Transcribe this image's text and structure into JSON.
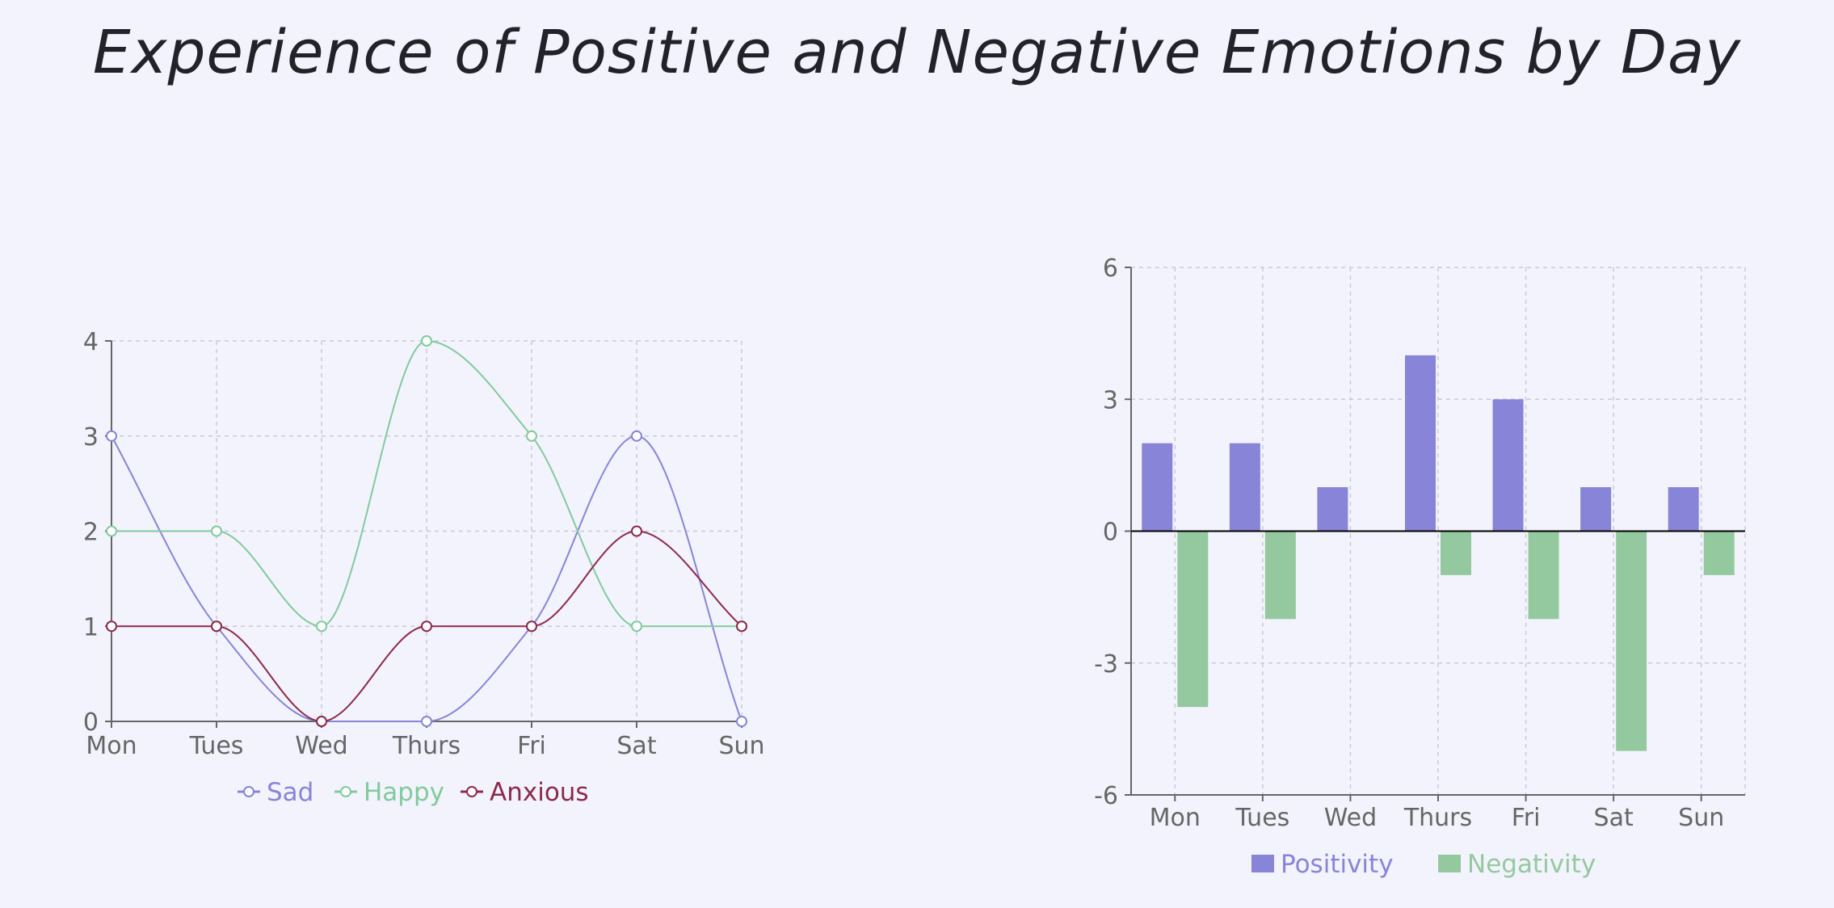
{
  "title": "Experience of Positive and Negative Emotions by Day",
  "chart_data": [
    {
      "type": "line",
      "categories": [
        "Mon",
        "Tues",
        "Wed",
        "Thurs",
        "Fri",
        "Sat",
        "Sun"
      ],
      "ylim": [
        0,
        4
      ],
      "yticks": [
        0,
        1,
        2,
        3,
        4
      ],
      "grid": true,
      "legend_position": "bottom",
      "series": [
        {
          "name": "Sad",
          "color": "#8884d8",
          "values": [
            3,
            1,
            0,
            0,
            1,
            3,
            0
          ]
        },
        {
          "name": "Happy",
          "color": "#82ca9d",
          "values": [
            2,
            2,
            1,
            4,
            3,
            1,
            1
          ]
        },
        {
          "name": "Anxious",
          "color": "#8b2a4a",
          "values": [
            1,
            1,
            0,
            1,
            1,
            2,
            1
          ]
        }
      ]
    },
    {
      "type": "bar",
      "categories": [
        "Mon",
        "Tues",
        "Wed",
        "Thurs",
        "Fri",
        "Sat",
        "Sun"
      ],
      "ylim": [
        -6,
        6
      ],
      "yticks": [
        -6,
        -3,
        0,
        3,
        6
      ],
      "grid": true,
      "legend_position": "bottom",
      "series": [
        {
          "name": "Positivity",
          "color": "#8884d8",
          "values": [
            2,
            2,
            1,
            4,
            3,
            1,
            1
          ]
        },
        {
          "name": "Negativity",
          "color": "#94c9a0",
          "values": [
            -4,
            -2,
            0,
            -1,
            -2,
            -5,
            -1
          ]
        }
      ]
    }
  ]
}
